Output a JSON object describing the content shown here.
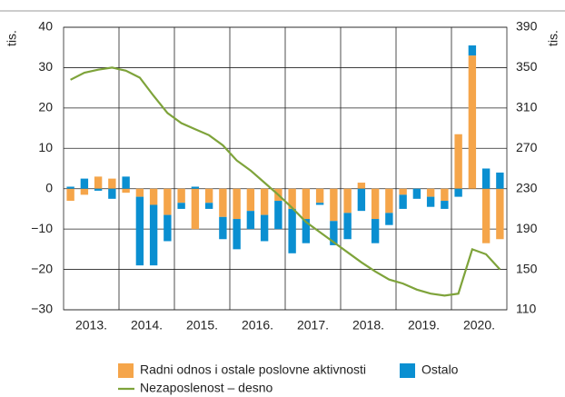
{
  "chart_data": {
    "type": "bar",
    "y_label": "tis.",
    "y2_label": "tis.",
    "categories": [
      "2013.",
      null,
      null,
      null,
      "2014.",
      null,
      null,
      null,
      "2015.",
      null,
      null,
      null,
      "2016.",
      null,
      null,
      null,
      "2017.",
      null,
      null,
      null,
      "2018.",
      null,
      null,
      null,
      "2019.",
      null,
      null,
      null,
      "2020.",
      null,
      null,
      null
    ],
    "series": [
      {
        "name": "Radni odnos i ostale poslovne aktivnosti",
        "color": "#f5a54a",
        "type": "bar",
        "values": [
          -3,
          -1.5,
          3,
          2.5,
          -1,
          -2,
          -4,
          -6.5,
          -3.5,
          -10,
          -3.5,
          -7,
          -7.5,
          -5.5,
          -6.5,
          -3,
          -5,
          -7.5,
          -3.5,
          -8,
          -6,
          1.5,
          -7.5,
          -6,
          -1.5,
          0,
          -2,
          -3,
          13.5,
          33,
          -13.5,
          -12.5
        ]
      },
      {
        "name": "Ostalo",
        "color": "#0a8fd1",
        "type": "bar",
        "values": [
          0.5,
          2.5,
          -0.5,
          -2.5,
          3,
          -17,
          -15,
          -6.5,
          -1.5,
          0.5,
          -1.5,
          -5.5,
          -7.5,
          -4.5,
          -6.5,
          -7,
          -11,
          -6,
          -0.5,
          -6,
          -6.5,
          -5.5,
          -6,
          -3,
          -3.5,
          -2.5,
          -2.5,
          -2,
          -2,
          2.5,
          5,
          4
        ]
      },
      {
        "name": "Nezaposlenost – desno",
        "color": "#7ea33a",
        "type": "line",
        "axis": "y2",
        "values": [
          338,
          345,
          348,
          350,
          347,
          340,
          322,
          305,
          295,
          289,
          283,
          273,
          258,
          248,
          236,
          224,
          211,
          197,
          187,
          177,
          167,
          157,
          148,
          140,
          136,
          130,
          126,
          124,
          126,
          170,
          165,
          150
        ]
      }
    ],
    "ylim": [
      -30,
      40
    ],
    "yticks": [
      {
        "value": -30,
        "label": "−30"
      },
      {
        "value": -20,
        "label": "−20"
      },
      {
        "value": -10,
        "label": "−10"
      },
      0,
      10,
      20,
      30,
      40
    ],
    "y2lim": [
      110,
      390
    ],
    "y2ticks": [
      110,
      150,
      190,
      230,
      270,
      310,
      350,
      390
    ],
    "grid": true
  }
}
